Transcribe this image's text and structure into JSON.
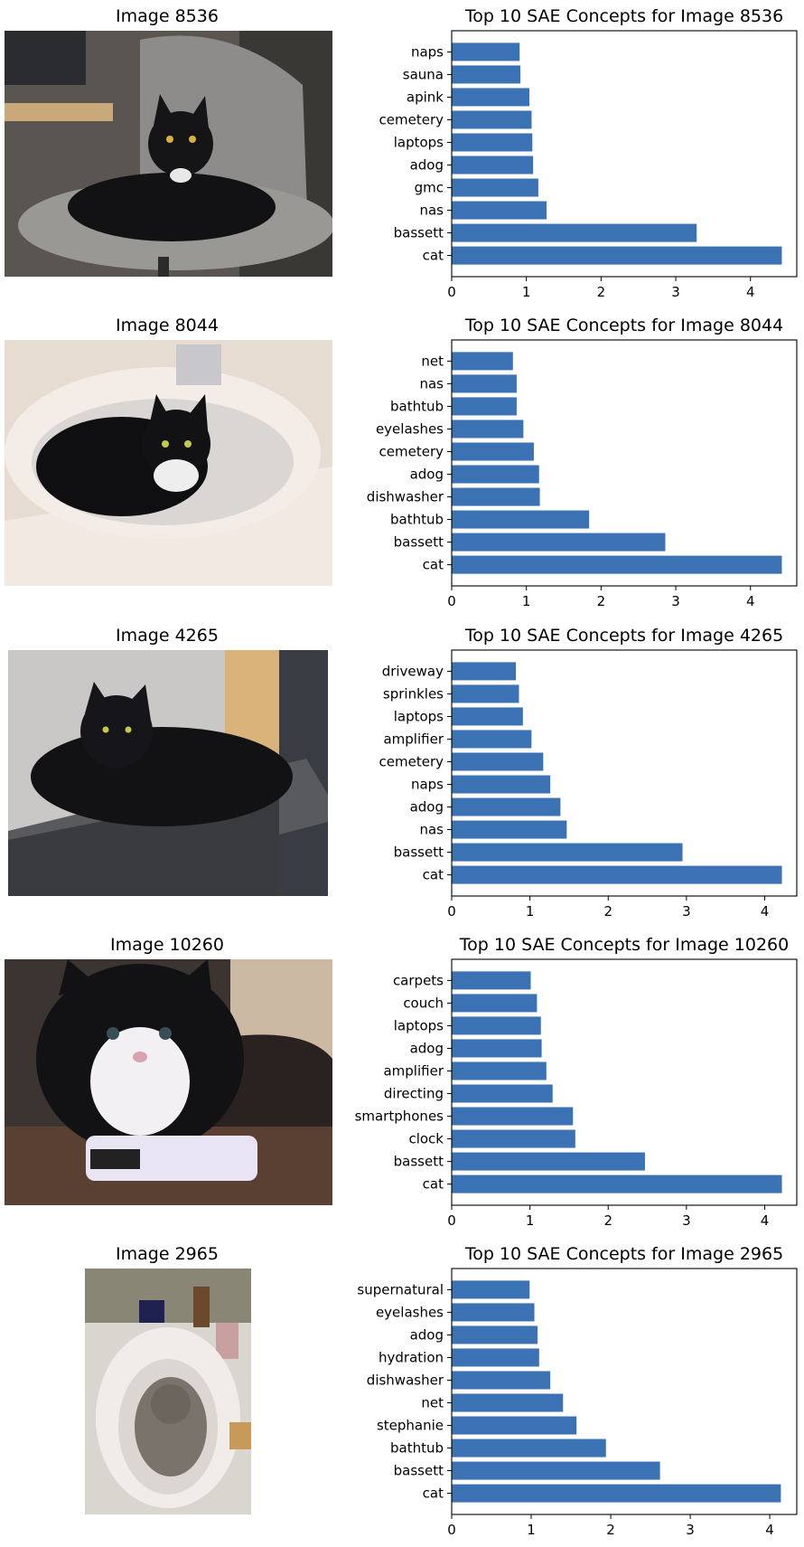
{
  "panels": [
    {
      "image_title": "Image 8536",
      "chart_title": "Top 10 SAE Concepts for Image 8536",
      "photo_scene": "cat-on-office-chair"
    },
    {
      "image_title": "Image 8044",
      "chart_title": "Top 10 SAE Concepts for Image 8044",
      "photo_scene": "cat-in-sink"
    },
    {
      "image_title": "Image 4265",
      "chart_title": "Top 10 SAE Concepts for Image 4265",
      "photo_scene": "cat-on-computer"
    },
    {
      "image_title": "Image 10260",
      "chart_title": "Top 10 SAE Concepts for Image 10260",
      "photo_scene": "cat-with-remote"
    },
    {
      "image_title": "Image 2965",
      "chart_title": "Top 10 SAE Concepts for Image 2965",
      "photo_scene": "cat-in-bathroom-sink"
    }
  ],
  "colors": {
    "bar": "#3b72b3",
    "axis": "#000000"
  },
  "chart_data": [
    {
      "type": "bar",
      "orientation": "horizontal",
      "title": "Top 10 SAE Concepts for Image 8536",
      "categories": [
        "cat",
        "bassett",
        "nas",
        "gmc",
        "adog",
        "laptops",
        "cemetery",
        "apink",
        "sauna",
        "naps"
      ],
      "values": [
        4.42,
        3.28,
        1.27,
        1.16,
        1.09,
        1.08,
        1.07,
        1.04,
        0.92,
        0.91
      ],
      "xlim": [
        0,
        4.62
      ],
      "xticks": [
        0,
        1,
        2,
        3,
        4
      ]
    },
    {
      "type": "bar",
      "orientation": "horizontal",
      "title": "Top 10 SAE Concepts for Image 8044",
      "categories": [
        "cat",
        "bassett",
        "bathtub",
        "dishwasher",
        "adog",
        "cemetery",
        "eyelashes",
        "bathtub",
        "nas",
        "net"
      ],
      "values": [
        4.42,
        2.86,
        1.84,
        1.18,
        1.17,
        1.1,
        0.96,
        0.87,
        0.87,
        0.82
      ],
      "xlim": [
        0,
        4.62
      ],
      "xticks": [
        0,
        1,
        2,
        3,
        4
      ]
    },
    {
      "type": "bar",
      "orientation": "horizontal",
      "title": "Top 10 SAE Concepts for Image 4265",
      "categories": [
        "cat",
        "bassett",
        "nas",
        "adog",
        "naps",
        "cemetery",
        "amplifier",
        "laptops",
        "sprinkles",
        "driveway"
      ],
      "values": [
        4.22,
        2.95,
        1.47,
        1.39,
        1.26,
        1.17,
        1.02,
        0.91,
        0.86,
        0.82
      ],
      "xlim": [
        0,
        4.41
      ],
      "xticks": [
        0,
        1,
        2,
        3,
        4
      ]
    },
    {
      "type": "bar",
      "orientation": "horizontal",
      "title": "Top 10 SAE Concepts for Image 10260",
      "categories": [
        "cat",
        "bassett",
        "clock",
        "smartphones",
        "directing",
        "amplifier",
        "adog",
        "laptops",
        "couch",
        "carpets"
      ],
      "values": [
        4.22,
        2.47,
        1.58,
        1.55,
        1.29,
        1.21,
        1.15,
        1.14,
        1.09,
        1.01
      ],
      "xlim": [
        0,
        4.41
      ],
      "xticks": [
        0,
        1,
        2,
        3,
        4
      ]
    },
    {
      "type": "bar",
      "orientation": "horizontal",
      "title": "Top 10 SAE Concepts for Image 2965",
      "categories": [
        "cat",
        "bassett",
        "bathtub",
        "stephanie",
        "net",
        "dishwasher",
        "hydration",
        "adog",
        "eyelashes",
        "supernatural"
      ],
      "values": [
        4.14,
        2.62,
        1.94,
        1.57,
        1.4,
        1.24,
        1.1,
        1.08,
        1.04,
        0.98
      ],
      "xlim": [
        0,
        4.34
      ],
      "xticks": [
        0,
        1,
        2,
        3,
        4
      ]
    }
  ]
}
